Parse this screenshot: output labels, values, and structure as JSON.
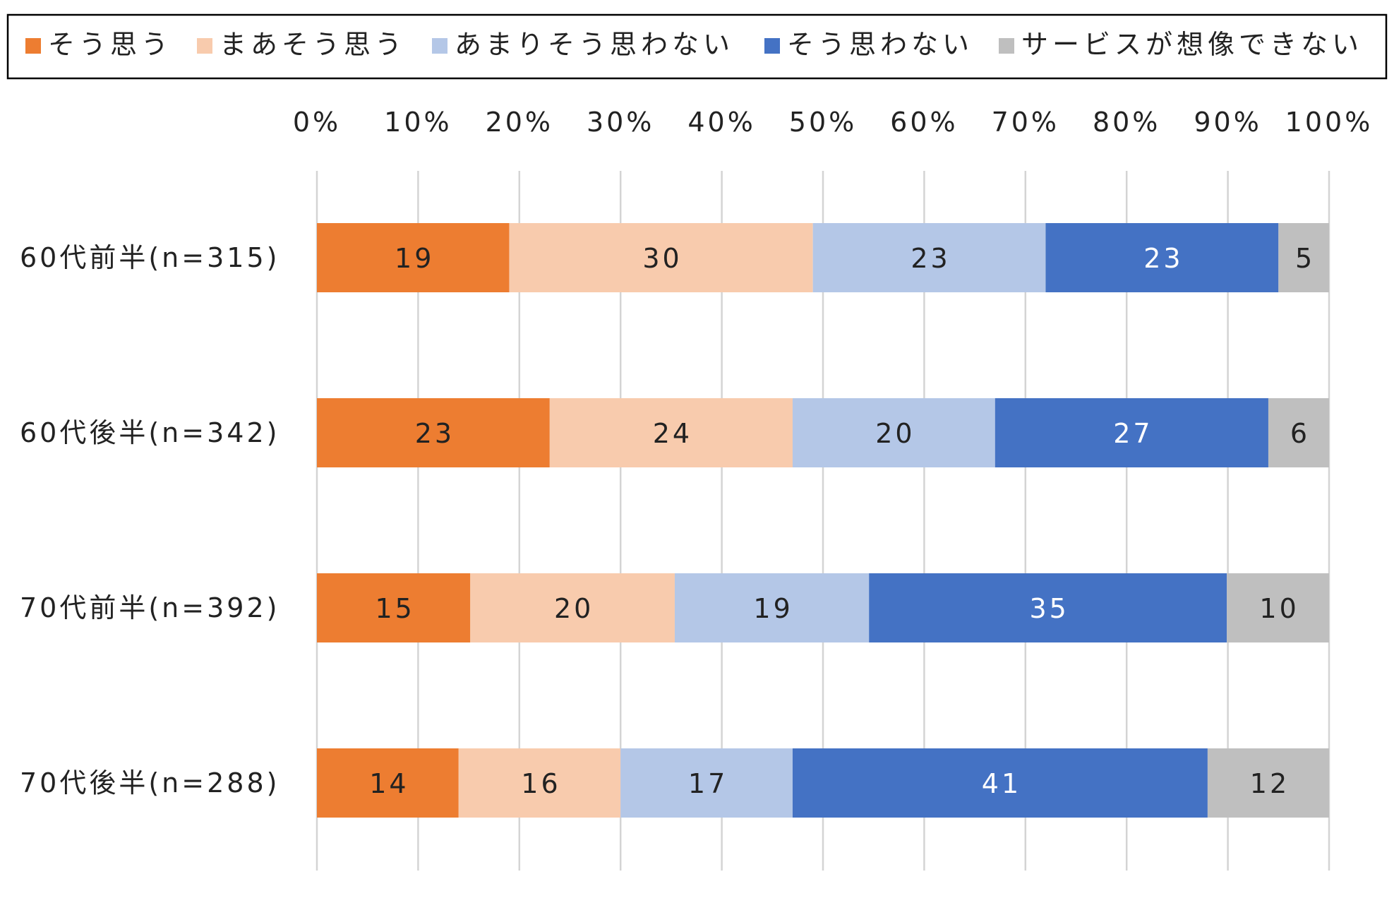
{
  "chart_data": {
    "type": "bar",
    "orientation": "horizontal",
    "stacked": true,
    "title": "",
    "xlabel": "",
    "ylabel": "",
    "xlim": [
      0,
      100
    ],
    "x_ticks": [
      "0%",
      "10%",
      "20%",
      "30%",
      "40%",
      "50%",
      "60%",
      "70%",
      "80%",
      "90%",
      "100%"
    ],
    "grid": true,
    "legend_position": "top",
    "categories": [
      "60代前半(n=315)",
      "60代後半(n=342)",
      "70代前半(n=392)",
      "70代後半(n=288)"
    ],
    "series": [
      {
        "name": "そう思う",
        "color": "#ED7D31",
        "label_color": "#222222",
        "values": [
          19,
          23,
          15,
          14
        ]
      },
      {
        "name": "まあそう思う",
        "color": "#F8CBAD",
        "label_color": "#222222",
        "values": [
          30,
          24,
          20,
          16
        ]
      },
      {
        "name": "あまりそう思わない",
        "color": "#B4C7E7",
        "label_color": "#222222",
        "values": [
          23,
          20,
          19,
          17
        ]
      },
      {
        "name": "そう思わない",
        "color": "#4472C4",
        "label_color": "#ffffff",
        "values": [
          23,
          27,
          35,
          41
        ]
      },
      {
        "name": "サービスが想像できない",
        "color": "#BFBFBF",
        "label_color": "#222222",
        "values": [
          5,
          6,
          10,
          12
        ]
      }
    ]
  }
}
